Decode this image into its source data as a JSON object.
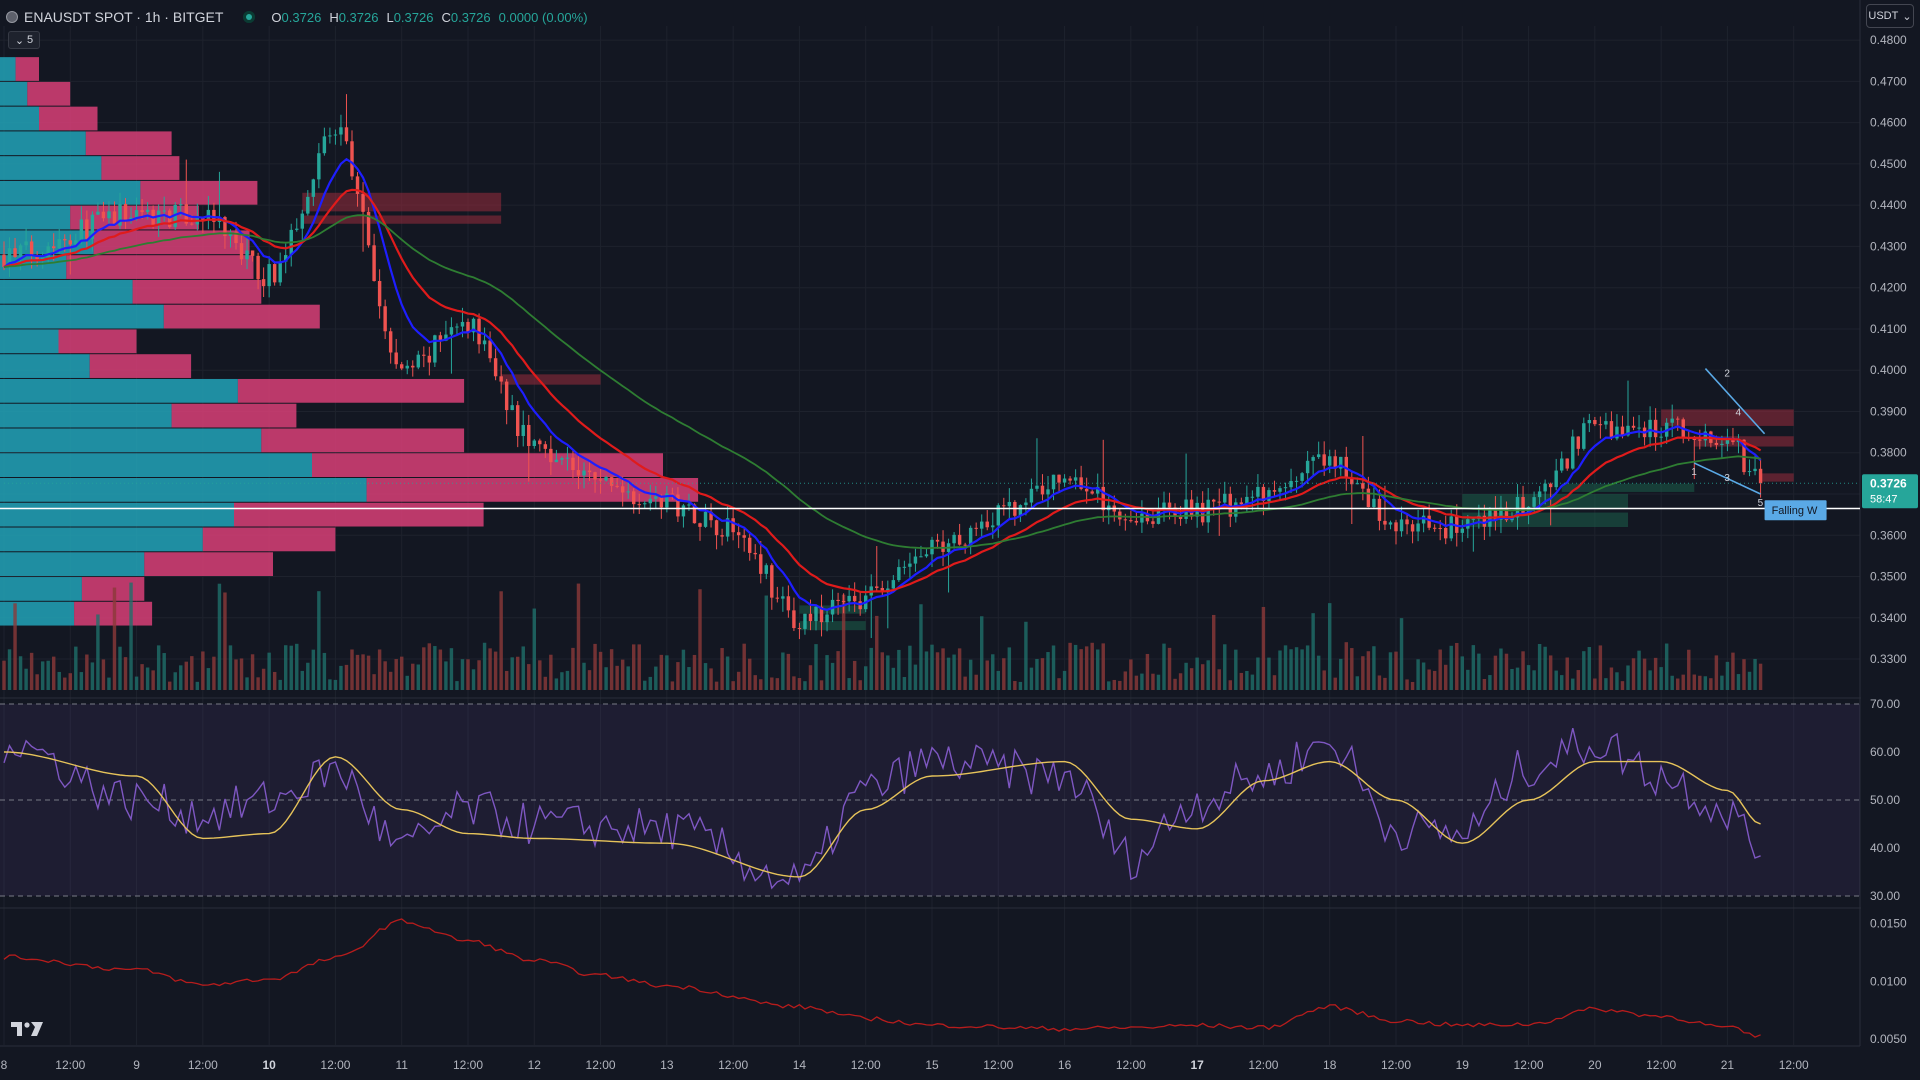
{
  "header": {
    "symbol": "ENAUSDT SPOT · 1h · BITGET",
    "ohlc": [
      {
        "k": "O",
        "v": "0.3726"
      },
      {
        "k": "H",
        "v": "0.3726"
      },
      {
        "k": "L",
        "v": "0.3726"
      },
      {
        "k": "C",
        "v": "0.3726"
      },
      {
        "k": "",
        "v": "0.0000 (0.00%)"
      }
    ],
    "collapse_count": "5",
    "currency": "USDT"
  },
  "price_badge": {
    "price": "0.3726",
    "countdown": "58:47"
  },
  "pattern_label": "Falling W",
  "colors": {
    "background": "#131722",
    "up": "#26a69a",
    "down": "#ef5350",
    "ema_fast": "#1e1eff",
    "ema_mid": "#e01b1b",
    "ema_slow": "#2e7d32",
    "rsi": "#7e57c2",
    "rsi_ma": "#e6c35a",
    "lower_indicator": "#b71c1c",
    "pattern": "#5aa9e6"
  },
  "chart_data": [
    {
      "type": "candlestick",
      "title": "ENAUSDT SPOT · 1h · BITGET",
      "ylim": [
        0.3225,
        0.481
      ],
      "price_ticks": [
        "0.4800",
        "0.4700",
        "0.4600",
        "0.4500",
        "0.4400",
        "0.4300",
        "0.4200",
        "0.4100",
        "0.4000",
        "0.3900",
        "0.3800",
        "0.3700",
        "0.3600",
        "0.3500",
        "0.3400",
        "0.3300"
      ],
      "hidden_tick": "0.3700",
      "horizontal_line": 0.3665,
      "last_price": 0.3726,
      "key_points": [
        {
          "x": "8 00:00",
          "price": 0.428
        },
        {
          "x": "9 00:00",
          "price": 0.438
        },
        {
          "x": "9 12:00",
          "price": 0.437
        },
        {
          "x": "10 00:00",
          "price": 0.423
        },
        {
          "x": "10 12:00",
          "price": 0.458
        },
        {
          "x": "11 00:00",
          "price": 0.4
        },
        {
          "x": "11 12:00",
          "price": 0.411
        },
        {
          "x": "12 00:00",
          "price": 0.382
        },
        {
          "x": "12 12:00",
          "price": 0.373
        },
        {
          "x": "13 00:00",
          "price": 0.368
        },
        {
          "x": "13 12:00",
          "price": 0.362
        },
        {
          "x": "14 00:00",
          "price": 0.339
        },
        {
          "x": "14 12:00",
          "price": 0.345
        },
        {
          "x": "15 00:00",
          "price": 0.356
        },
        {
          "x": "15 12:00",
          "price": 0.365
        },
        {
          "x": "16 00:00",
          "price": 0.374
        },
        {
          "x": "16 12:00",
          "price": 0.365
        },
        {
          "x": "17 00:00",
          "price": 0.366
        },
        {
          "x": "17 12:00",
          "price": 0.369
        },
        {
          "x": "18 00:00",
          "price": 0.378
        },
        {
          "x": "18 12:00",
          "price": 0.362
        },
        {
          "x": "19 00:00",
          "price": 0.362
        },
        {
          "x": "19 12:00",
          "price": 0.367
        },
        {
          "x": "20 00:00",
          "price": 0.386
        },
        {
          "x": "20 12:00",
          "price": 0.386
        },
        {
          "x": "21 00:00",
          "price": 0.383
        },
        {
          "x": "21 06:00",
          "price": 0.3726
        }
      ],
      "pattern_points": [
        {
          "label": "1",
          "price": 0.3775
        },
        {
          "label": "2",
          "price": 0.3975
        },
        {
          "label": "3",
          "price": 0.376
        },
        {
          "label": "4",
          "price": 0.388
        },
        {
          "label": "5",
          "price": 0.37
        }
      ],
      "volume_profile": [
        {
          "price": 0.473,
          "up": 0.004,
          "down": 0.006
        },
        {
          "price": 0.467,
          "up": 0.007,
          "down": 0.011
        },
        {
          "price": 0.461,
          "up": 0.01,
          "down": 0.015
        },
        {
          "price": 0.455,
          "up": 0.022,
          "down": 0.022
        },
        {
          "price": 0.449,
          "up": 0.026,
          "down": 0.02
        },
        {
          "price": 0.443,
          "up": 0.036,
          "down": 0.03
        },
        {
          "price": 0.437,
          "up": 0.018,
          "down": 0.033
        },
        {
          "price": 0.431,
          "up": 0.024,
          "down": 0.04
        },
        {
          "price": 0.425,
          "up": 0.017,
          "down": 0.048
        },
        {
          "price": 0.419,
          "up": 0.034,
          "down": 0.033
        },
        {
          "price": 0.413,
          "up": 0.042,
          "down": 0.04
        },
        {
          "price": 0.407,
          "up": 0.015,
          "down": 0.02
        },
        {
          "price": 0.401,
          "up": 0.023,
          "down": 0.026
        },
        {
          "price": 0.395,
          "up": 0.061,
          "down": 0.058
        },
        {
          "price": 0.389,
          "up": 0.044,
          "down": 0.032
        },
        {
          "price": 0.383,
          "up": 0.067,
          "down": 0.052
        },
        {
          "price": 0.377,
          "up": 0.08,
          "down": 0.09
        },
        {
          "price": 0.371,
          "up": 0.094,
          "down": 0.085
        },
        {
          "price": 0.365,
          "up": 0.06,
          "down": 0.064
        },
        {
          "price": 0.359,
          "up": 0.052,
          "down": 0.034
        },
        {
          "price": 0.353,
          "up": 0.037,
          "down": 0.033
        },
        {
          "price": 0.347,
          "up": 0.021,
          "down": 0.016
        },
        {
          "price": 0.341,
          "up": 0.019,
          "down": 0.02
        }
      ],
      "supply_zones": [
        {
          "from": "10 06:00",
          "to": "11 18:00",
          "top": 0.443,
          "bottom": 0.4385
        },
        {
          "from": "10 06:00",
          "to": "11 18:00",
          "top": 0.4375,
          "bottom": 0.4355
        },
        {
          "from": "11 18:00",
          "to": "12 12:00",
          "top": 0.399,
          "bottom": 0.3965
        },
        {
          "from": "20 12:00",
          "to": "21 12:00",
          "top": 0.3905,
          "bottom": 0.3865
        },
        {
          "from": "20 18:00",
          "to": "21 12:00",
          "top": 0.384,
          "bottom": 0.3815
        },
        {
          "from": "21 06:00",
          "to": "21 12:00",
          "top": 0.375,
          "bottom": 0.373
        }
      ],
      "demand_zones": [
        {
          "from": "14 00:00",
          "to": "14 12:00",
          "top": 0.343,
          "bottom": 0.341
        },
        {
          "from": "14 00:00",
          "to": "14 12:00",
          "top": 0.3392,
          "bottom": 0.337
        },
        {
          "from": "19 00:00",
          "to": "20 06:00",
          "top": 0.37,
          "bottom": 0.3665
        },
        {
          "from": "19 00:00",
          "to": "20 06:00",
          "top": 0.3655,
          "bottom": 0.362
        },
        {
          "from": "19 18:00",
          "to": "20 18:00",
          "top": 0.3725,
          "bottom": 0.3705
        }
      ]
    },
    {
      "type": "line",
      "title": "RSI",
      "ylim": [
        30,
        70
      ],
      "y_ticks": [
        "70.00",
        "60.00",
        "50.00",
        "40.00",
        "30.00"
      ],
      "levels": [
        70,
        50,
        30
      ],
      "key_points": [
        {
          "x": "8 00:00",
          "rsi": 62,
          "ma": 60
        },
        {
          "x": "9 00:00",
          "rsi": 50,
          "ma": 55
        },
        {
          "x": "9 12:00",
          "rsi": 47,
          "ma": 42
        },
        {
          "x": "10 00:00",
          "rsi": 50,
          "ma": 43
        },
        {
          "x": "10 12:00",
          "rsi": 56,
          "ma": 59
        },
        {
          "x": "11 00:00",
          "rsi": 40,
          "ma": 48
        },
        {
          "x": "11 12:00",
          "rsi": 48,
          "ma": 43
        },
        {
          "x": "12 00:00",
          "rsi": 45,
          "ma": 42
        },
        {
          "x": "13 00:00",
          "rsi": 44,
          "ma": 41
        },
        {
          "x": "14 00:00",
          "rsi": 33,
          "ma": 34
        },
        {
          "x": "14 12:00",
          "rsi": 52,
          "ma": 48
        },
        {
          "x": "15 00:00",
          "rsi": 58,
          "ma": 55
        },
        {
          "x": "16 00:00",
          "rsi": 55,
          "ma": 58
        },
        {
          "x": "16 12:00",
          "rsi": 38,
          "ma": 46
        },
        {
          "x": "17 00:00",
          "rsi": 50,
          "ma": 44
        },
        {
          "x": "17 12:00",
          "rsi": 55,
          "ma": 54
        },
        {
          "x": "18 00:00",
          "rsi": 62,
          "ma": 58
        },
        {
          "x": "18 12:00",
          "rsi": 44,
          "ma": 50
        },
        {
          "x": "19 00:00",
          "rsi": 43,
          "ma": 41
        },
        {
          "x": "19 12:00",
          "rsi": 57,
          "ma": 50
        },
        {
          "x": "20 00:00",
          "rsi": 62,
          "ma": 58
        },
        {
          "x": "20 12:00",
          "rsi": 55,
          "ma": 58
        },
        {
          "x": "21 00:00",
          "rsi": 48,
          "ma": 52
        },
        {
          "x": "21 06:00",
          "rsi": 39,
          "ma": 45
        }
      ]
    },
    {
      "type": "line",
      "title": "",
      "ylim": [
        0.0045,
        0.016
      ],
      "y_ticks": [
        "0.0150",
        "0.0100",
        "0.0050"
      ],
      "key_points": [
        {
          "x": "8 00:00",
          "value": 0.0121
        },
        {
          "x": "9 00:00",
          "value": 0.011
        },
        {
          "x": "9 12:00",
          "value": 0.0097
        },
        {
          "x": "10 00:00",
          "value": 0.0102
        },
        {
          "x": "10 12:00",
          "value": 0.012
        },
        {
          "x": "11 00:00",
          "value": 0.0152
        },
        {
          "x": "11 12:00",
          "value": 0.0135
        },
        {
          "x": "12 00:00",
          "value": 0.0118
        },
        {
          "x": "12 12:00",
          "value": 0.0105
        },
        {
          "x": "13 00:00",
          "value": 0.0096
        },
        {
          "x": "14 00:00",
          "value": 0.0078
        },
        {
          "x": "14 12:00",
          "value": 0.0068
        },
        {
          "x": "15 00:00",
          "value": 0.0062
        },
        {
          "x": "16 00:00",
          "value": 0.0059
        },
        {
          "x": "16 12:00",
          "value": 0.006
        },
        {
          "x": "17 00:00",
          "value": 0.0062
        },
        {
          "x": "17 12:00",
          "value": 0.006
        },
        {
          "x": "18 00:00",
          "value": 0.0078
        },
        {
          "x": "18 12:00",
          "value": 0.0066
        },
        {
          "x": "19 00:00",
          "value": 0.0062
        },
        {
          "x": "19 12:00",
          "value": 0.0063
        },
        {
          "x": "20 00:00",
          "value": 0.0076
        },
        {
          "x": "20 12:00",
          "value": 0.007
        },
        {
          "x": "21 00:00",
          "value": 0.006
        },
        {
          "x": "21 06:00",
          "value": 0.0052
        }
      ]
    }
  ],
  "time_axis": {
    "ticks": [
      {
        "label": "8",
        "t": 0,
        "bold": false
      },
      {
        "label": "12:00",
        "t": 12,
        "bold": false
      },
      {
        "label": "9",
        "t": 24,
        "bold": false
      },
      {
        "label": "12:00",
        "t": 36,
        "bold": false
      },
      {
        "label": "10",
        "t": 48,
        "bold": true
      },
      {
        "label": "12:00",
        "t": 60,
        "bold": false
      },
      {
        "label": "11",
        "t": 72,
        "bold": false
      },
      {
        "label": "12:00",
        "t": 84,
        "bold": false
      },
      {
        "label": "12",
        "t": 96,
        "bold": false
      },
      {
        "label": "12:00",
        "t": 108,
        "bold": false
      },
      {
        "label": "13",
        "t": 120,
        "bold": false
      },
      {
        "label": "12:00",
        "t": 132,
        "bold": false
      },
      {
        "label": "14",
        "t": 144,
        "bold": false
      },
      {
        "label": "12:00",
        "t": 156,
        "bold": false
      },
      {
        "label": "15",
        "t": 168,
        "bold": false
      },
      {
        "label": "12:00",
        "t": 180,
        "bold": false
      },
      {
        "label": "16",
        "t": 192,
        "bold": false
      },
      {
        "label": "12:00",
        "t": 204,
        "bold": false
      },
      {
        "label": "17",
        "t": 216,
        "bold": true
      },
      {
        "label": "12:00",
        "t": 228,
        "bold": false
      },
      {
        "label": "18",
        "t": 240,
        "bold": false
      },
      {
        "label": "12:00",
        "t": 252,
        "bold": false
      },
      {
        "label": "19",
        "t": 264,
        "bold": false
      },
      {
        "label": "12:00",
        "t": 276,
        "bold": false
      },
      {
        "label": "20",
        "t": 288,
        "bold": false
      },
      {
        "label": "12:00",
        "t": 300,
        "bold": false
      },
      {
        "label": "21",
        "t": 312,
        "bold": false
      },
      {
        "label": "12:00",
        "t": 324,
        "bold": false
      }
    ]
  }
}
